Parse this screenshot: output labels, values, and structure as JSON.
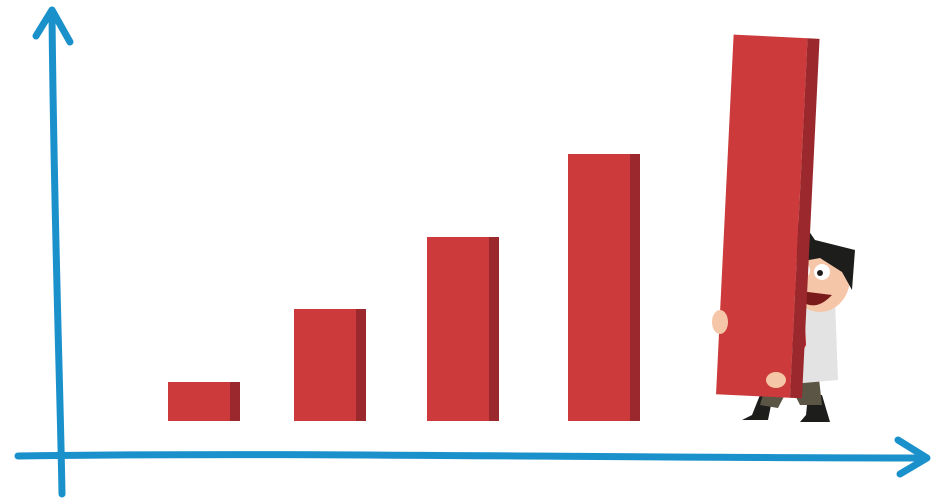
{
  "chart_data": {
    "type": "bar",
    "values": [
      39,
      112,
      184,
      267,
      360
    ],
    "color": "#cc3a3b",
    "side_color": "#9b282c"
  }
}
